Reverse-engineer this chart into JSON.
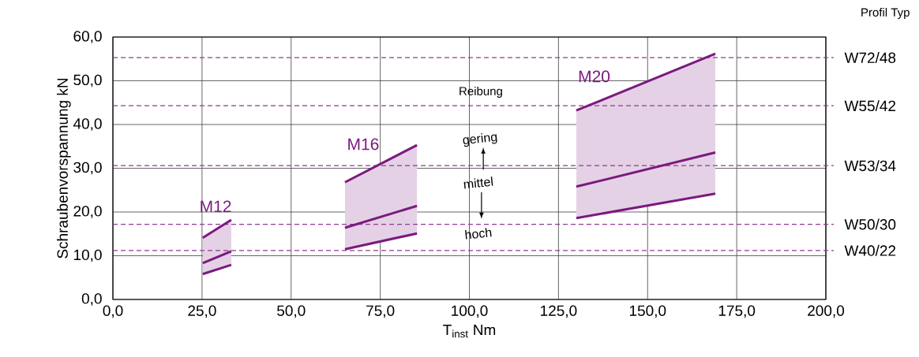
{
  "chart_data": {
    "type": "line",
    "xlabel": "T$_{inst}$ Nm",
    "ylabel": "Schraubenvorspannung kN",
    "y2label": "Profil Typ",
    "xlim": [
      0,
      200
    ],
    "ylim": [
      0,
      60
    ],
    "xticks": [
      {
        "value": 0,
        "label": "0,0"
      },
      {
        "value": 25,
        "label": "25,0"
      },
      {
        "value": 50,
        "label": "50,0"
      },
      {
        "value": 75,
        "label": "75,0"
      },
      {
        "value": 100,
        "label": "100,0"
      },
      {
        "value": 125,
        "label": "125,0"
      },
      {
        "value": 150,
        "label": "150,0"
      },
      {
        "value": 175,
        "label": "175,0"
      },
      {
        "value": 200,
        "label": "200,0"
      }
    ],
    "yticks": [
      {
        "value": 0,
        "label": "0,0"
      },
      {
        "value": 10,
        "label": "10,0"
      },
      {
        "value": 20,
        "label": "20,0"
      },
      {
        "value": 30,
        "label": "30,0"
      },
      {
        "value": 40,
        "label": "40,0"
      },
      {
        "value": 50,
        "label": "50,0"
      },
      {
        "value": 60,
        "label": "60,0"
      }
    ],
    "grid": true,
    "series": [
      {
        "color": "#7b1a7f",
        "x": [
          25.2,
          33.2
        ],
        "values": [
          14.1,
          18.2
        ]
      },
      {
        "color": "#7b1a7f",
        "x": [
          25.2,
          33.2
        ],
        "values": [
          8.3,
          11.0
        ],
        "lower": [
          5.8,
          7.9
        ],
        "upper": [
          14.1,
          18.2
        ]
      },
      {
        "color": "#7b1a7f",
        "x": [
          25.2,
          33.2
        ],
        "values": [
          5.8,
          7.9
        ]
      },
      {
        "color": "#7b1a7f",
        "x": [
          65.1,
          85.3
        ],
        "values": [
          26.8,
          35.3
        ]
      },
      {
        "color": "#7b1a7f",
        "x": [
          65.1,
          85.3
        ],
        "values": [
          16.4,
          21.4
        ],
        "lower": [
          11.5,
          15.1
        ],
        "upper": [
          26.8,
          35.3
        ]
      },
      {
        "color": "#7b1a7f",
        "x": [
          65.1,
          85.3
        ],
        "values": [
          11.5,
          15.1
        ]
      },
      {
        "color": "#7b1a7f",
        "x": [
          130.0,
          169.0
        ],
        "values": [
          43.2,
          56.2
        ]
      },
      {
        "color": "#7b1a7f",
        "x": [
          130.0,
          169.0
        ],
        "values": [
          25.8,
          33.6
        ],
        "lower": [
          18.6,
          24.2
        ],
        "upper": [
          43.2,
          56.2
        ]
      },
      {
        "color": "#7b1a7f",
        "x": [
          130.0,
          169.0
        ],
        "values": [
          18.6,
          24.2
        ]
      }
    ],
    "ref_lines": [
      {
        "axis": "y",
        "value": 55.3,
        "label": "W72/48",
        "color": "#8e3a92",
        "line_style": "dashed"
      },
      {
        "axis": "y",
        "value": 44.3,
        "label": "W55/42",
        "color": "#8e3a92",
        "line_style": "dashed"
      },
      {
        "axis": "y",
        "value": 30.6,
        "label": "W53/34",
        "color": "#8e3a92",
        "line_style": "dashed"
      },
      {
        "axis": "y",
        "value": 17.2,
        "label": "W50/30",
        "color": "#8e3a92",
        "line_style": "dashed"
      },
      {
        "axis": "y",
        "value": 11.2,
        "label": "W40/22",
        "color": "#8e3a92",
        "line_style": "dashed"
      }
    ],
    "annotations": [
      "M12",
      "M16",
      "M20",
      "Reibung",
      "gering",
      "mittel",
      "hoch"
    ]
  }
}
